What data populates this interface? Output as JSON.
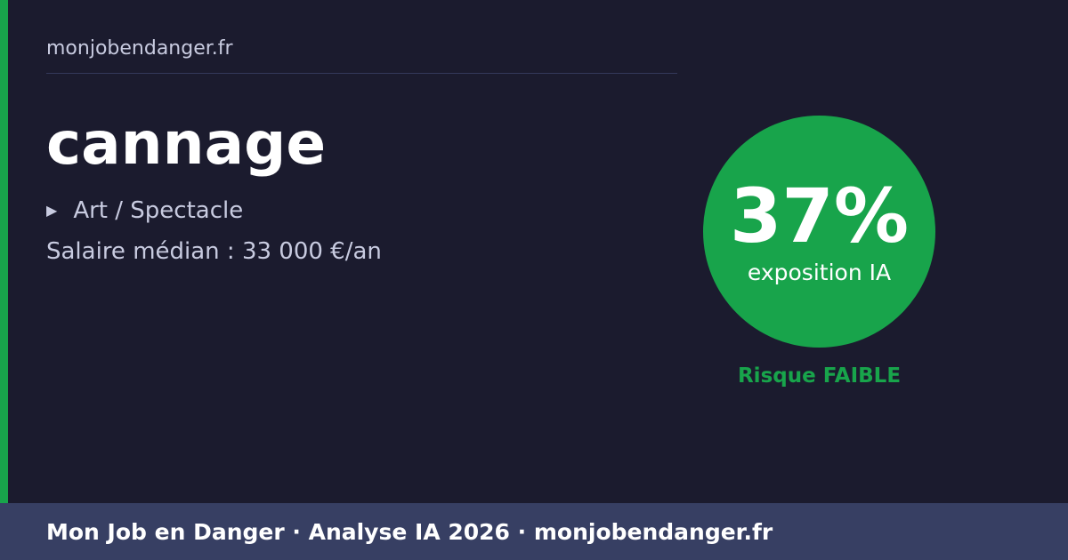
{
  "site": "monjobendanger.fr",
  "job": {
    "title": "cannage",
    "category": "Art / Spectacle",
    "category_icon": "triangle-right-icon",
    "salary": "Salaire médian : 33 000 €/an"
  },
  "exposure": {
    "percent_label": "37%",
    "percent": 37,
    "label": "exposition IA",
    "risk": "Risque FAIBLE",
    "color": "#18a44b"
  },
  "footer": {
    "text": "Mon Job en Danger · Analyse IA 2026 · monjobendanger.fr"
  }
}
